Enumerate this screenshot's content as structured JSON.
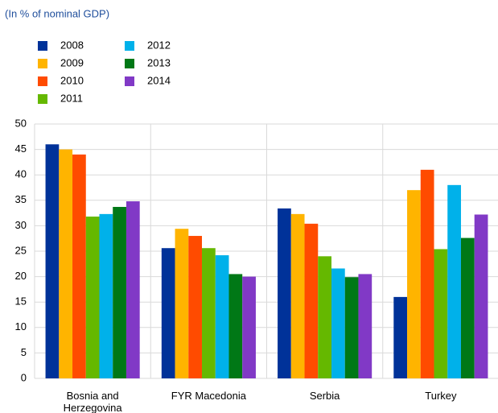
{
  "chart_data": {
    "type": "bar",
    "subtitle": "(In % of nominal GDP)",
    "categories": [
      "Bosnia and Herzegovina",
      "FYR Macedonia",
      "Serbia",
      "Turkey"
    ],
    "series": [
      {
        "name": "2008",
        "color": "#003299",
        "values": [
          46.0,
          25.6,
          33.4,
          16.0
        ]
      },
      {
        "name": "2009",
        "color": "#ffb400",
        "values": [
          45.0,
          29.4,
          32.3,
          37.0
        ]
      },
      {
        "name": "2010",
        "color": "#ff4b00",
        "values": [
          44.0,
          28.0,
          30.4,
          41.0
        ]
      },
      {
        "name": "2011",
        "color": "#65b800",
        "values": [
          31.8,
          25.6,
          24.0,
          25.4
        ]
      },
      {
        "name": "2012",
        "color": "#00b1ea",
        "values": [
          32.3,
          24.2,
          21.6,
          38.0
        ]
      },
      {
        "name": "2013",
        "color": "#007816",
        "values": [
          33.7,
          20.5,
          19.9,
          27.6
        ]
      },
      {
        "name": "2014",
        "color": "#8139c6",
        "values": [
          34.8,
          20.0,
          20.5,
          32.2
        ]
      }
    ],
    "ylim": [
      0,
      50
    ],
    "yticks": [
      0,
      5,
      10,
      15,
      20,
      25,
      30,
      35,
      40,
      45,
      50
    ],
    "grid": true
  }
}
